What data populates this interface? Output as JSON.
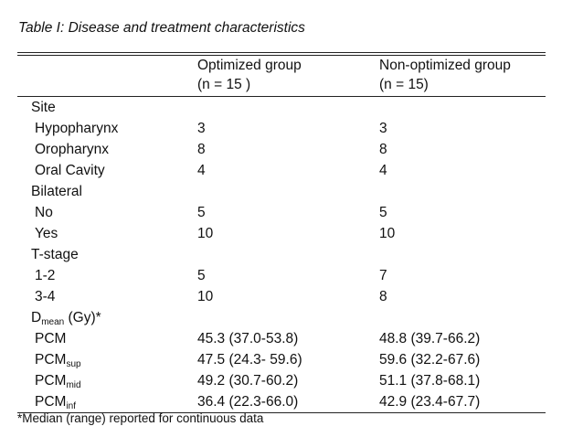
{
  "caption": "Table I: Disease and treatment characteristics",
  "header": {
    "col1_line1": "Optimized group",
    "col1_line2": "(n = 15 )",
    "col2_line1": "Non-optimized group",
    "col2_line2": "(n = 15)"
  },
  "rows": {
    "site": "Site",
    "hypopharynx": {
      "label": "Hypopharynx",
      "opt": "3",
      "non": "3"
    },
    "oropharynx": {
      "label": "Oropharynx",
      "opt": "8",
      "non": "8"
    },
    "oral_cavity": {
      "label": "Oral Cavity",
      "opt": "4",
      "non": "4"
    },
    "bilateral": "Bilateral",
    "no": {
      "label": "No",
      "opt": "5",
      "non": "5"
    },
    "yes": {
      "label": "Yes",
      "opt": "10",
      "non": "10"
    },
    "tstage": "T-stage",
    "t12": {
      "label": "1-2",
      "opt": "5",
      "non": "7"
    },
    "t34": {
      "label": "3-4",
      "opt": "10",
      "non": "8"
    },
    "dmean": {
      "main": "D",
      "sub": "mean",
      "rest": " (Gy)*"
    },
    "pcm": {
      "label": "PCM",
      "opt": "45.3 (37.0-53.8)",
      "non": "48.8 (39.7-66.2)"
    },
    "pcm_sup": {
      "label": "PCM",
      "sub": "sup",
      "opt": "47.5 (24.3- 59.6)",
      "non": "59.6 (32.2-67.6)"
    },
    "pcm_mid": {
      "label": "PCM",
      "sub": "mid",
      "opt": "49.2 (30.7-60.2)",
      "non": "51.1 (37.8-68.1)"
    },
    "pcm_inf": {
      "label": "PCM",
      "sub": "inf",
      "opt": "36.4 (22.3-66.0)",
      "non": "42.9 (23.4-67.7)"
    }
  },
  "footnote": "*Median (range) reported for continuous data"
}
